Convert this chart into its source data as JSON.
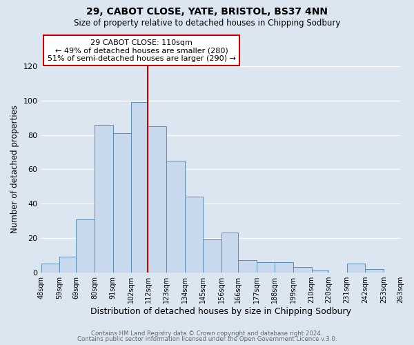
{
  "title": "29, CABOT CLOSE, YATE, BRISTOL, BS37 4NN",
  "subtitle": "Size of property relative to detached houses in Chipping Sodbury",
  "xlabel": "Distribution of detached houses by size in Chipping Sodbury",
  "ylabel": "Number of detached properties",
  "bin_labels": [
    "48sqm",
    "59sqm",
    "69sqm",
    "80sqm",
    "91sqm",
    "102sqm",
    "112sqm",
    "123sqm",
    "134sqm",
    "145sqm",
    "156sqm",
    "166sqm",
    "177sqm",
    "188sqm",
    "199sqm",
    "210sqm",
    "220sqm",
    "231sqm",
    "242sqm",
    "253sqm",
    "263sqm"
  ],
  "bin_edges": [
    48,
    59,
    69,
    80,
    91,
    102,
    112,
    123,
    134,
    145,
    156,
    166,
    177,
    188,
    199,
    210,
    220,
    231,
    242,
    253,
    263
  ],
  "bar_heights": [
    5,
    9,
    31,
    86,
    81,
    99,
    85,
    65,
    44,
    19,
    23,
    7,
    6,
    6,
    3,
    1,
    0,
    5,
    2,
    0
  ],
  "bar_color": "#c9d9ed",
  "bar_edge_color": "#5b8db8",
  "vline_x": 112,
  "vline_color": "#cc0000",
  "annotation_title": "29 CABOT CLOSE: 110sqm",
  "annotation_line1": "← 49% of detached houses are smaller (280)",
  "annotation_line2": "51% of semi-detached houses are larger (290) →",
  "annotation_box_color": "#ffffff",
  "annotation_box_edge": "#cc0000",
  "ylim": [
    0,
    120
  ],
  "yticks": [
    0,
    20,
    40,
    60,
    80,
    100,
    120
  ],
  "footer1": "Contains HM Land Registry data © Crown copyright and database right 2024.",
  "footer2": "Contains public sector information licensed under the Open Government Licence v.3.0.",
  "background_color": "#dce6f0",
  "plot_bg_color": "#dce6f0"
}
